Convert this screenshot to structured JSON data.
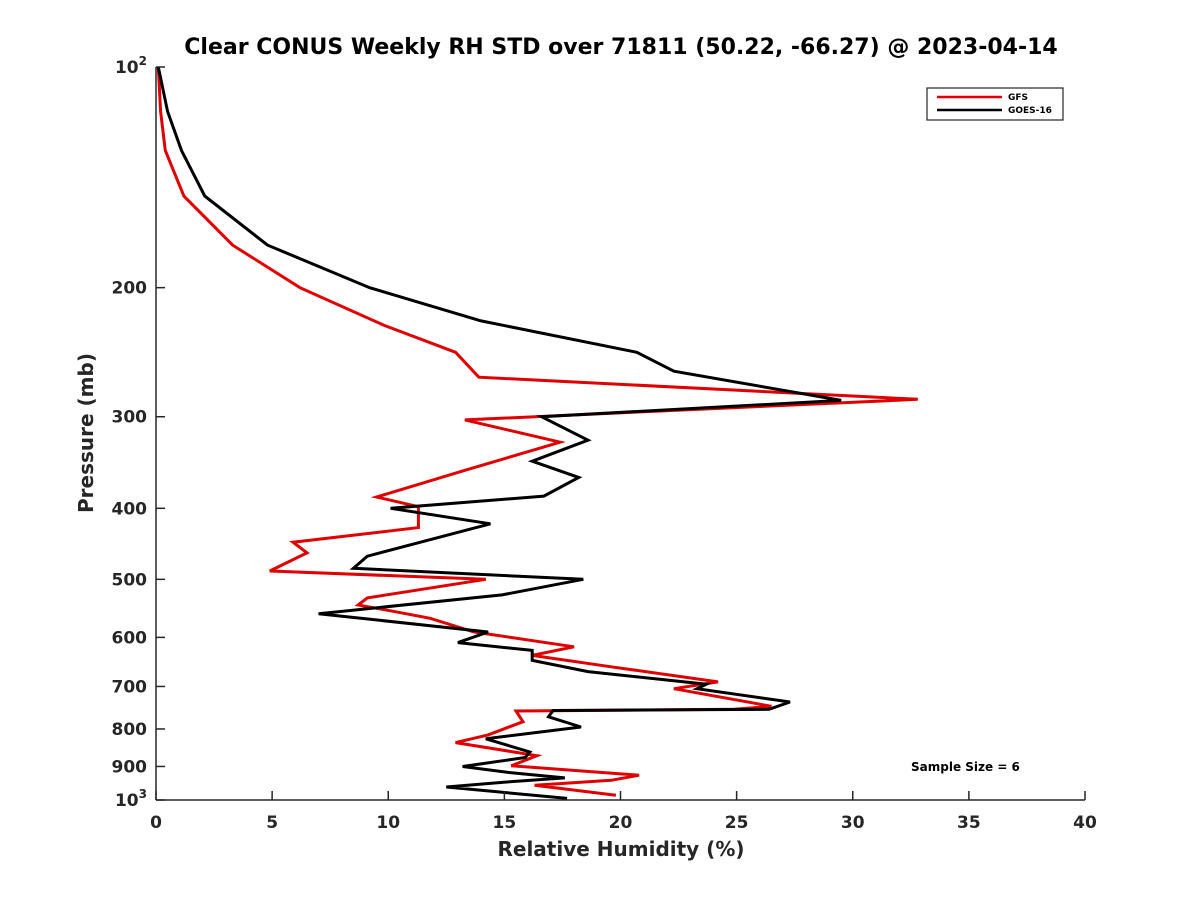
{
  "chart_data": {
    "type": "line",
    "title": "Clear CONUS Weekly RH STD over 71811 (50.22, -66.27) @ 2023-04-14",
    "xlabel": "Relative Humidity (%)",
    "ylabel": "Pressure (mb)",
    "xlim": [
      0,
      40
    ],
    "ylim": [
      100,
      1000
    ],
    "yscale": "log",
    "y_reversed": true,
    "x_ticks": [
      "0",
      "5",
      "10",
      "15",
      "20",
      "25",
      "30",
      "35",
      "40"
    ],
    "y_ticks": [
      {
        "value": 100,
        "label": "10",
        "sup": "2"
      },
      {
        "value": 200,
        "label": "200",
        "sup": ""
      },
      {
        "value": 300,
        "label": "300",
        "sup": ""
      },
      {
        "value": 400,
        "label": "400",
        "sup": ""
      },
      {
        "value": 500,
        "label": "500",
        "sup": ""
      },
      {
        "value": 600,
        "label": "600",
        "sup": ""
      },
      {
        "value": 700,
        "label": "700",
        "sup": ""
      },
      {
        "value": 800,
        "label": "800",
        "sup": ""
      },
      {
        "value": 900,
        "label": "900",
        "sup": ""
      },
      {
        "value": 1000,
        "label": "10",
        "sup": "3"
      }
    ],
    "grid": false,
    "legend_position": "top-right",
    "annotation": "Sample Size = 6",
    "series": [
      {
        "name": "GFS",
        "color": "#e00000",
        "points": [
          [
            0.1,
            100
          ],
          [
            0.2,
            115
          ],
          [
            0.4,
            130
          ],
          [
            1.2,
            150
          ],
          [
            3.3,
            175
          ],
          [
            6.2,
            200
          ],
          [
            9.8,
            225
          ],
          [
            12.9,
            245
          ],
          [
            13.9,
            265
          ],
          [
            32.8,
            284
          ],
          [
            13.3,
            303
          ],
          [
            17.4,
            325
          ],
          [
            13.3,
            355
          ],
          [
            9.5,
            386
          ],
          [
            11.3,
            398
          ],
          [
            11.3,
            425
          ],
          [
            5.9,
            445
          ],
          [
            6.5,
            460
          ],
          [
            4.9,
            487
          ],
          [
            14.2,
            500
          ],
          [
            9.1,
            530
          ],
          [
            8.7,
            542
          ],
          [
            10.1,
            552
          ],
          [
            11.8,
            565
          ],
          [
            13.7,
            590
          ],
          [
            18.0,
            618
          ],
          [
            16.2,
            635
          ],
          [
            19.6,
            658
          ],
          [
            24.2,
            690
          ],
          [
            22.3,
            705
          ],
          [
            26.5,
            745
          ],
          [
            24.9,
            752
          ],
          [
            15.5,
            756
          ],
          [
            15.8,
            782
          ],
          [
            14.3,
            815
          ],
          [
            12.9,
            835
          ],
          [
            16.4,
            870
          ],
          [
            15.3,
            898
          ],
          [
            20.8,
            925
          ],
          [
            19.6,
            940
          ],
          [
            16.3,
            955
          ],
          [
            19.8,
            985
          ]
        ]
      },
      {
        "name": "GOES-16",
        "color": "#000000",
        "points": [
          [
            0.1,
            100
          ],
          [
            0.5,
            115
          ],
          [
            1.1,
            130
          ],
          [
            2.1,
            150
          ],
          [
            4.8,
            175
          ],
          [
            9.2,
            200
          ],
          [
            14.0,
            222
          ],
          [
            20.7,
            245
          ],
          [
            22.3,
            260
          ],
          [
            29.5,
            285
          ],
          [
            16.6,
            300
          ],
          [
            18.6,
            323
          ],
          [
            16.2,
            345
          ],
          [
            18.2,
            363
          ],
          [
            16.7,
            385
          ],
          [
            10.1,
            400
          ],
          [
            14.4,
            420
          ],
          [
            9.1,
            465
          ],
          [
            8.5,
            483
          ],
          [
            18.4,
            500
          ],
          [
            14.9,
            525
          ],
          [
            7.0,
            557
          ],
          [
            14.3,
            590
          ],
          [
            13.0,
            610
          ],
          [
            16.2,
            625
          ],
          [
            16.2,
            645
          ],
          [
            18.6,
            668
          ],
          [
            23.7,
            695
          ],
          [
            23.3,
            705
          ],
          [
            27.3,
            735
          ],
          [
            26.4,
            752
          ],
          [
            17.1,
            755
          ],
          [
            16.9,
            770
          ],
          [
            18.3,
            795
          ],
          [
            14.2,
            825
          ],
          [
            16.1,
            860
          ],
          [
            15.9,
            875
          ],
          [
            13.2,
            900
          ],
          [
            15.3,
            918
          ],
          [
            17.6,
            933
          ],
          [
            15.1,
            945
          ],
          [
            12.5,
            960
          ],
          [
            17.7,
            995
          ]
        ]
      }
    ]
  }
}
